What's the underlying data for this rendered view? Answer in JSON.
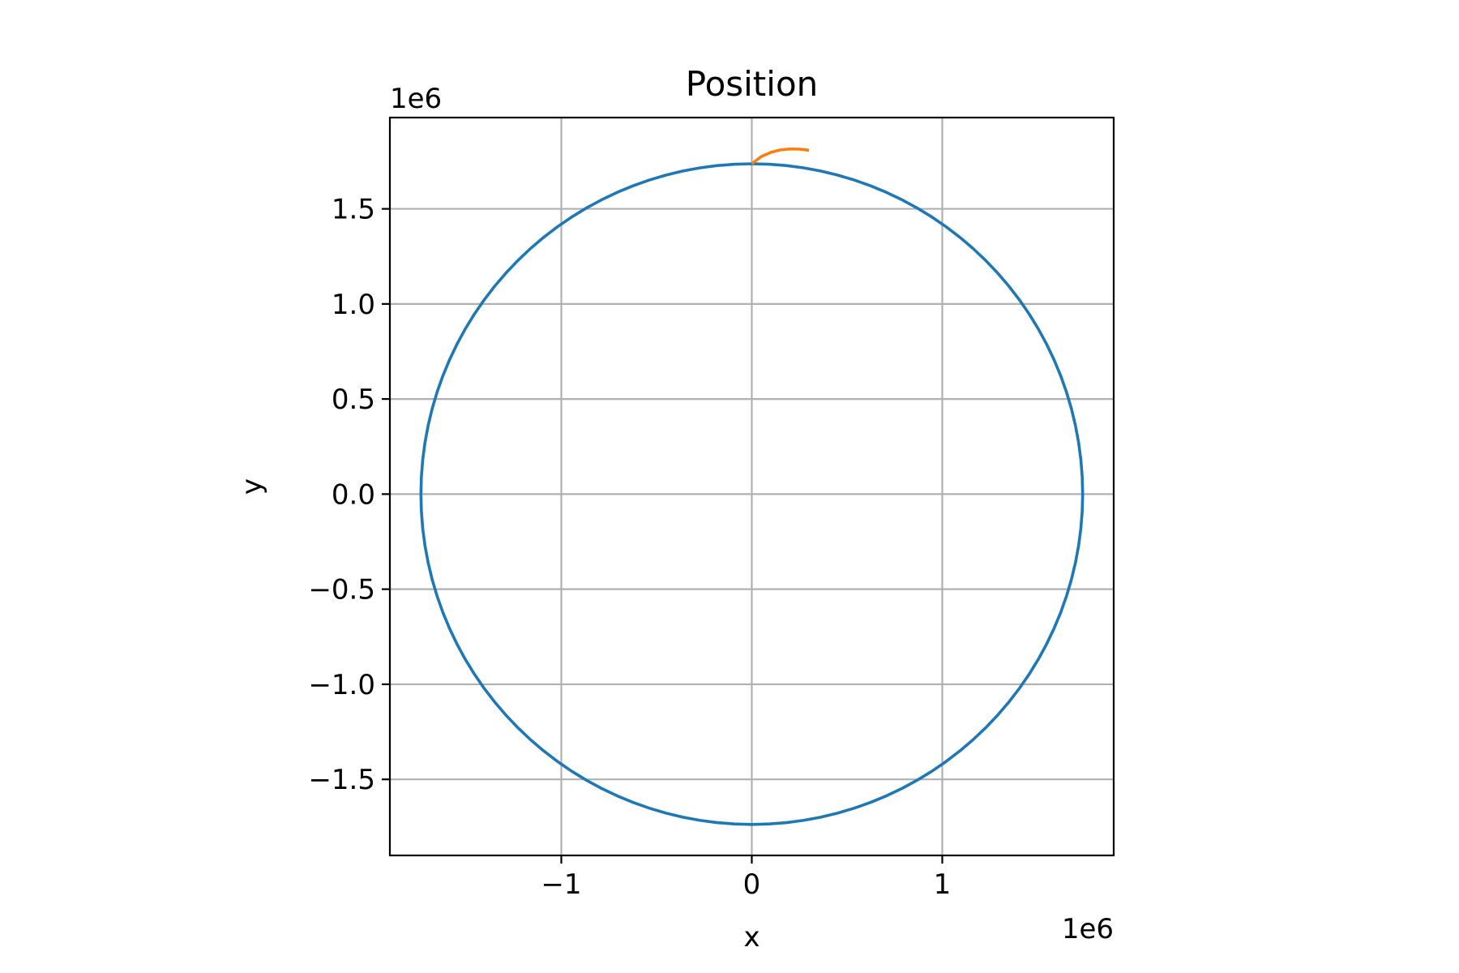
{
  "chart_data": {
    "type": "line",
    "title": "Position",
    "xlabel": "x",
    "ylabel": "y",
    "x_offset_label": "1e6",
    "y_offset_label": "1e6",
    "xlim": [
      -1900000.0,
      1900000.0
    ],
    "ylim": [
      -1900000.0,
      1980000.0
    ],
    "xticks": [
      {
        "value": -1000000.0,
        "label": "−1"
      },
      {
        "value": 0,
        "label": "0"
      },
      {
        "value": 1000000.0,
        "label": "1"
      }
    ],
    "yticks": [
      {
        "value": -1500000.0,
        "label": "−1.5"
      },
      {
        "value": -1000000.0,
        "label": "−1.0"
      },
      {
        "value": -500000.0,
        "label": "−0.5"
      },
      {
        "value": 0,
        "label": "0.0"
      },
      {
        "value": 500000.0,
        "label": "0.5"
      },
      {
        "value": 1000000.0,
        "label": "1.0"
      },
      {
        "value": 1500000.0,
        "label": "1.5"
      }
    ],
    "grid": true,
    "series": [
      {
        "color": "#1f77b4",
        "shape": "circle",
        "center": [
          0,
          0
        ],
        "radius": 1737000.0
      },
      {
        "color": "#ff7f0e",
        "shape": "arc",
        "x": [
          0,
          50000,
          100000,
          150000,
          200000,
          250000,
          300000
        ],
        "y": [
          1737000.0,
          1775000.0,
          1797000.0,
          1810000.0,
          1815000.0,
          1814000.0,
          1808000.0
        ]
      }
    ]
  }
}
